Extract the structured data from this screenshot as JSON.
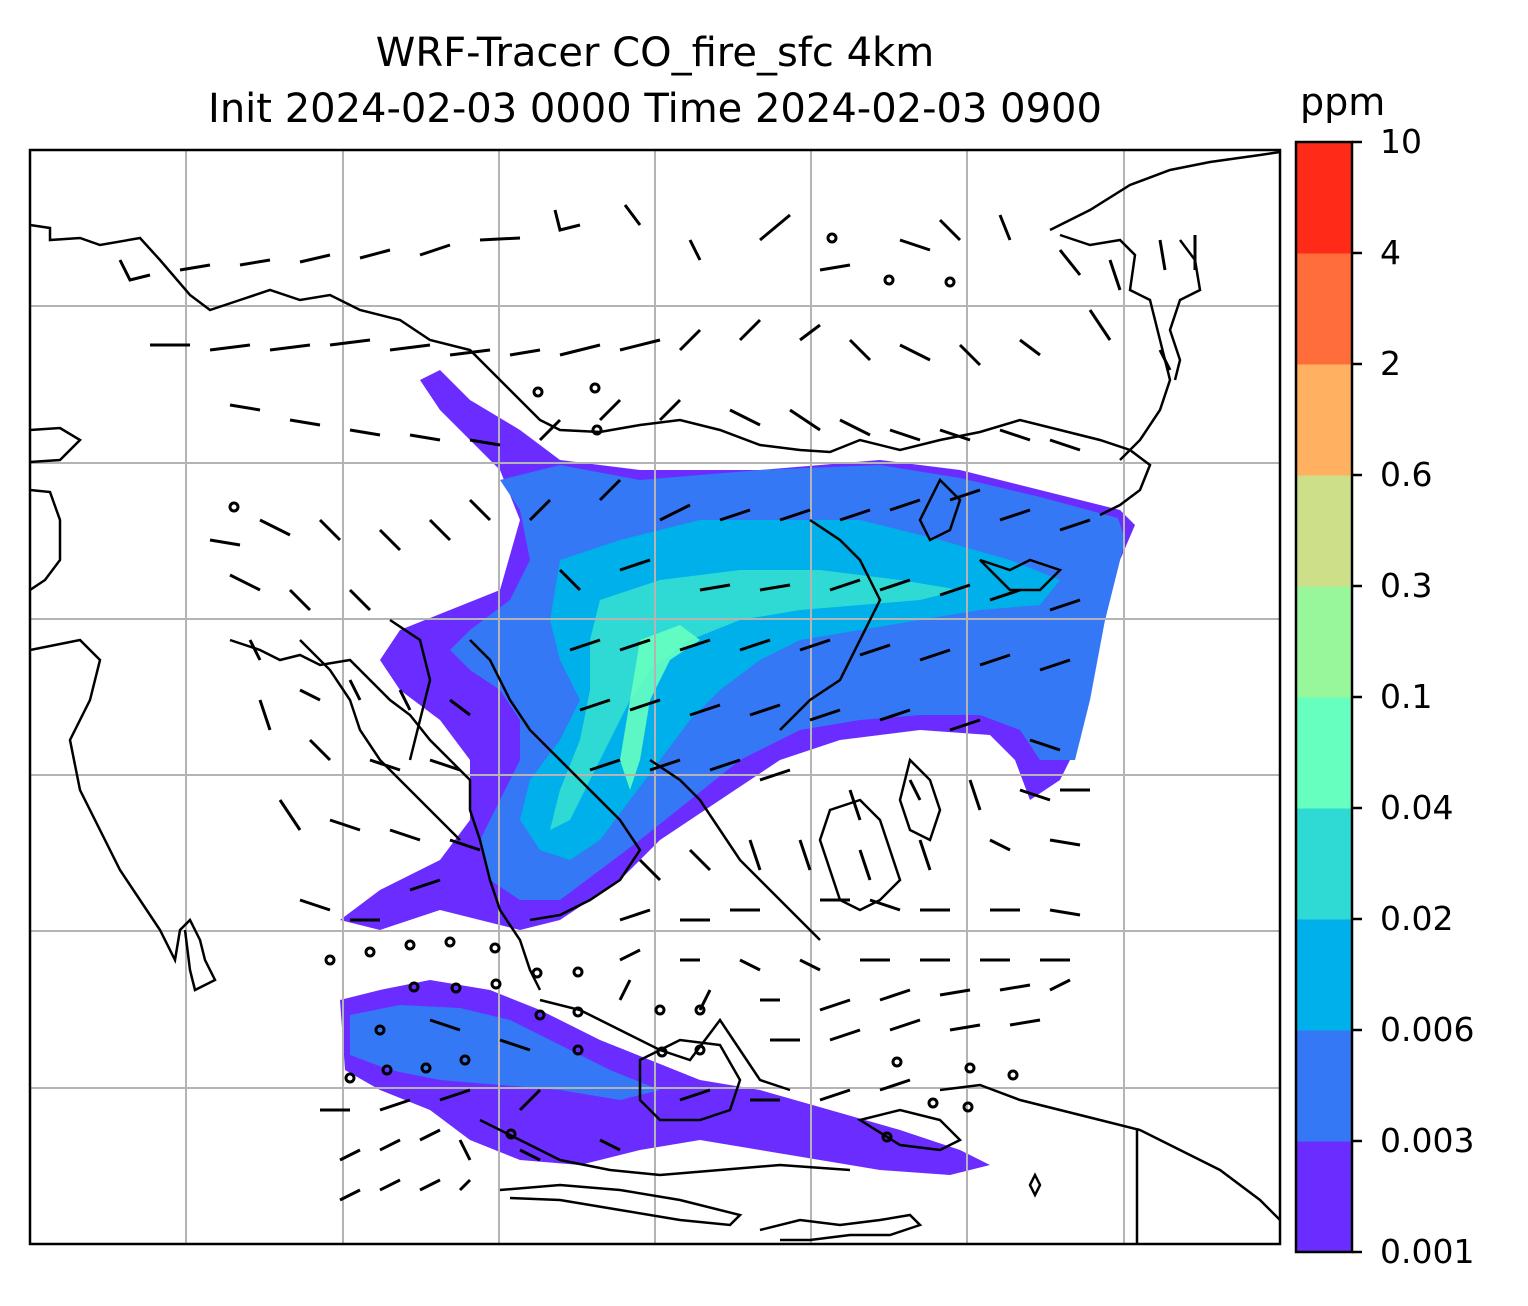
{
  "title_line1": "WRF-Tracer CO_fire_sfc 4km",
  "title_line2": "Init 2024-02-03 0000 Time 2024-02-03 0900",
  "colorbar": {
    "unit": "ppm",
    "levels": [
      "0.001",
      "0.003",
      "0.006",
      "0.02",
      "0.04",
      "0.1",
      "0.3",
      "0.6",
      "2",
      "4",
      "10"
    ],
    "colors": [
      "#6a2cff",
      "#3478f5",
      "#00b0ea",
      "#2fdad4",
      "#66ffc0",
      "#98f79a",
      "#cde089",
      "#ffb061",
      "#ff6e3a",
      "#ff2a17"
    ]
  },
  "map": {
    "gridlines": true,
    "wind_barbs": true
  }
}
